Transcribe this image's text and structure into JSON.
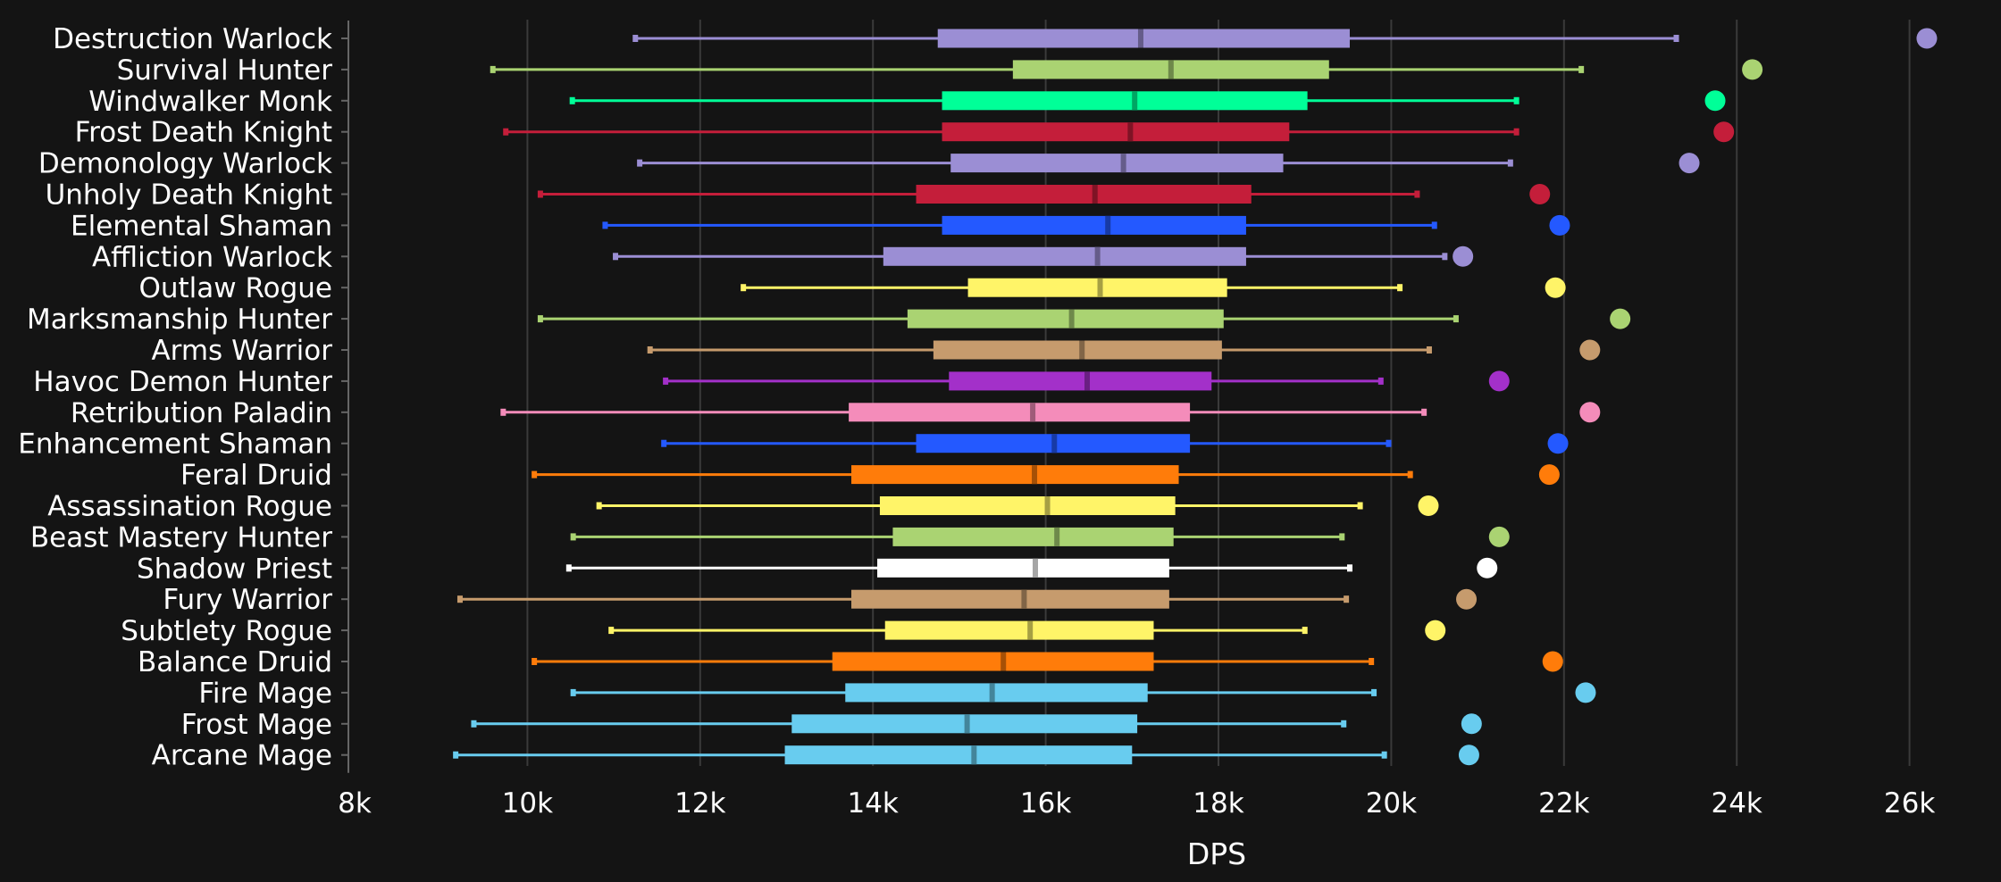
{
  "chart_data": {
    "type": "box",
    "title": "",
    "xlabel": "DPS",
    "ylabel": "",
    "xlim": [
      8000,
      26500
    ],
    "xticks": [
      8000,
      10000,
      12000,
      14000,
      16000,
      18000,
      20000,
      22000,
      24000,
      26000
    ],
    "xtick_labels": [
      "8k",
      "10k",
      "12k",
      "14k",
      "16k",
      "18k",
      "20k",
      "22k",
      "24k",
      "26k"
    ],
    "grid": "vertical",
    "series": [
      {
        "name": "Destruction Warlock",
        "color": "#9b8ed4",
        "min": 11250,
        "q1": 14750,
        "median": 17100,
        "q3": 19520,
        "max": 23300,
        "outlier": 26200
      },
      {
        "name": "Survival Hunter",
        "color": "#aad372",
        "min": 9600,
        "q1": 15620,
        "median": 17450,
        "q3": 19280,
        "max": 22200,
        "outlier": 24180
      },
      {
        "name": "Windwalker Monk",
        "color": "#00ff98",
        "min": 10520,
        "q1": 14800,
        "median": 17030,
        "q3": 19030,
        "max": 21450,
        "outlier": 23750
      },
      {
        "name": "Frost Death Knight",
        "color": "#c41e3a",
        "min": 9750,
        "q1": 14800,
        "median": 16980,
        "q3": 18820,
        "max": 21450,
        "outlier": 23850
      },
      {
        "name": "Demonology Warlock",
        "color": "#9b8ed4",
        "min": 11300,
        "q1": 14900,
        "median": 16900,
        "q3": 18750,
        "max": 21380,
        "outlier": 23450
      },
      {
        "name": "Unholy Death Knight",
        "color": "#c41e3a",
        "min": 10150,
        "q1": 14500,
        "median": 16570,
        "q3": 18380,
        "max": 20300,
        "outlier": 21720
      },
      {
        "name": "Elemental Shaman",
        "color": "#2459ff",
        "min": 10900,
        "q1": 14800,
        "median": 16720,
        "q3": 18320,
        "max": 20500,
        "outlier": 21950
      },
      {
        "name": "Affliction Warlock",
        "color": "#9b8ed4",
        "min": 11020,
        "q1": 14120,
        "median": 16600,
        "q3": 18320,
        "max": 20620,
        "outlier": 20830
      },
      {
        "name": "Outlaw Rogue",
        "color": "#fff468",
        "min": 12500,
        "q1": 15100,
        "median": 16630,
        "q3": 18100,
        "max": 20100,
        "outlier": 21900
      },
      {
        "name": "Marksmanship Hunter",
        "color": "#aad372",
        "min": 10150,
        "q1": 14400,
        "median": 16300,
        "q3": 18060,
        "max": 20750,
        "outlier": 22650
      },
      {
        "name": "Arms Warrior",
        "color": "#c69b6d",
        "min": 11420,
        "q1": 14700,
        "median": 16420,
        "q3": 18040,
        "max": 20440,
        "outlier": 22300
      },
      {
        "name": "Havoc Demon Hunter",
        "color": "#a330c9",
        "min": 11600,
        "q1": 14880,
        "median": 16480,
        "q3": 17920,
        "max": 19880,
        "outlier": 21250
      },
      {
        "name": "Retribution Paladin",
        "color": "#f48cba",
        "min": 9720,
        "q1": 13720,
        "median": 15850,
        "q3": 17670,
        "max": 20380,
        "outlier": 22300
      },
      {
        "name": "Enhancement Shaman",
        "color": "#2459ff",
        "min": 11580,
        "q1": 14500,
        "median": 16100,
        "q3": 17670,
        "max": 19970,
        "outlier": 21930
      },
      {
        "name": "Feral Druid",
        "color": "#ff7c0a",
        "min": 10080,
        "q1": 13750,
        "median": 15870,
        "q3": 17540,
        "max": 20220,
        "outlier": 21830
      },
      {
        "name": "Assassination Rogue",
        "color": "#fff468",
        "min": 10830,
        "q1": 14080,
        "median": 16020,
        "q3": 17500,
        "max": 19640,
        "outlier": 20430
      },
      {
        "name": "Beast Mastery Hunter",
        "color": "#aad372",
        "min": 10530,
        "q1": 14230,
        "median": 16130,
        "q3": 17480,
        "max": 19430,
        "outlier": 21250
      },
      {
        "name": "Shadow Priest",
        "color": "#ffffff",
        "min": 10480,
        "q1": 14050,
        "median": 15880,
        "q3": 17430,
        "max": 19520,
        "outlier": 21110
      },
      {
        "name": "Fury Warrior",
        "color": "#c69b6d",
        "min": 9220,
        "q1": 13750,
        "median": 15750,
        "q3": 17430,
        "max": 19480,
        "outlier": 20870
      },
      {
        "name": "Subtlety Rogue",
        "color": "#fff468",
        "min": 10970,
        "q1": 14140,
        "median": 15820,
        "q3": 17250,
        "max": 19000,
        "outlier": 20510
      },
      {
        "name": "Balance Druid",
        "color": "#ff7c0a",
        "min": 10080,
        "q1": 13530,
        "median": 15510,
        "q3": 17250,
        "max": 19770,
        "outlier": 21870
      },
      {
        "name": "Fire Mage",
        "color": "#68ccef",
        "min": 10530,
        "q1": 13680,
        "median": 15380,
        "q3": 17180,
        "max": 19800,
        "outlier": 22250
      },
      {
        "name": "Frost Mage",
        "color": "#68ccef",
        "min": 9380,
        "q1": 13060,
        "median": 15090,
        "q3": 17060,
        "max": 19450,
        "outlier": 20930
      },
      {
        "name": "Arcane Mage",
        "color": "#68ccef",
        "min": 9170,
        "q1": 12980,
        "median": 15170,
        "q3": 17000,
        "max": 19920,
        "outlier": 20900
      }
    ]
  }
}
